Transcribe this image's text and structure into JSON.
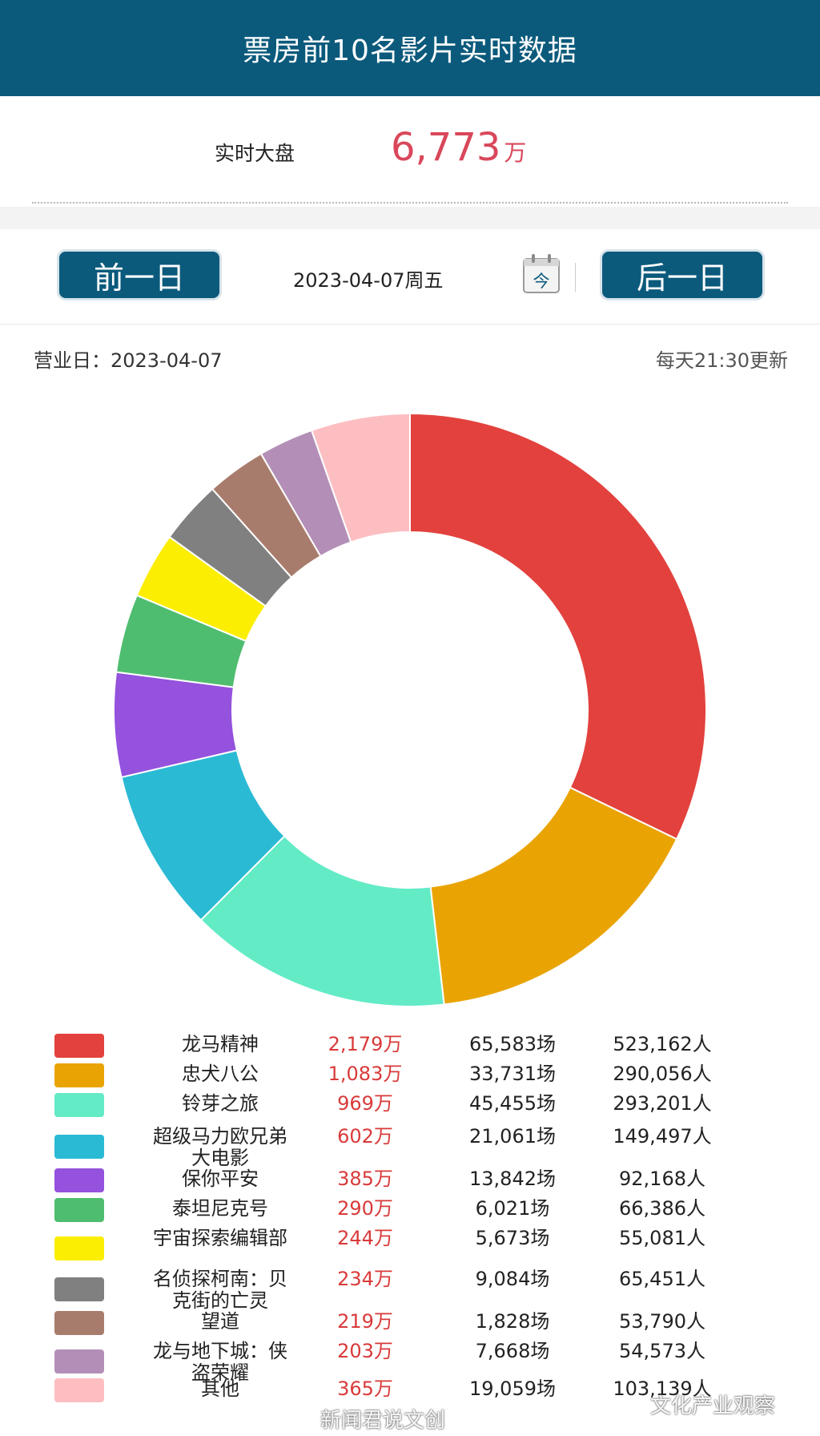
{
  "header": {
    "title": "票房前10名影片实时数据"
  },
  "total": {
    "label": "实时大盘",
    "value": "6,773",
    "unit": "万"
  },
  "nav": {
    "prev_label": "前一日",
    "date": "2023-04-07周五",
    "calendar_text": "今",
    "next_label": "后一日"
  },
  "info": {
    "business_day_label": "营业日：",
    "business_day": "2023-04-07",
    "update_note": "每天21:30更新"
  },
  "legend": [
    {
      "name": "龙马精神",
      "box_office": "2,179万",
      "shows": "65,583场",
      "people": "523,162人"
    },
    {
      "name": "忠犬八公",
      "box_office": "1,083万",
      "shows": "33,731场",
      "people": "290,056人"
    },
    {
      "name": "铃芽之旅",
      "box_office": "969万",
      "shows": "45,455场",
      "people": "293,201人"
    },
    {
      "name": "超级马力欧兄弟大电影",
      "box_office": "602万",
      "shows": "21,061场",
      "people": "149,497人"
    },
    {
      "name": "保你平安",
      "box_office": "385万",
      "shows": "13,842场",
      "people": "92,168人"
    },
    {
      "name": "泰坦尼克号",
      "box_office": "290万",
      "shows": "6,021场",
      "people": "66,386人"
    },
    {
      "name": "宇宙探索编辑部",
      "box_office": "244万",
      "shows": "5,673场",
      "people": "55,081人"
    },
    {
      "name": "名侦探柯南：贝克街的亡灵",
      "box_office": "234万",
      "shows": "9,084场",
      "people": "65,451人"
    },
    {
      "name": "望道",
      "box_office": "219万",
      "shows": "1,828场",
      "people": "53,790人"
    },
    {
      "name": "龙与地下城：侠盗荣耀",
      "box_office": "203万",
      "shows": "7,668场",
      "people": "54,573人"
    },
    {
      "name": "其他",
      "box_office": "365万",
      "shows": "19,059场",
      "people": "103,139人"
    }
  ],
  "watermark": {
    "left": "新闻君说文创",
    "right": "文化产业观察"
  },
  "chart_data": {
    "type": "pie",
    "style": "donut",
    "unit": "万",
    "categories": [
      "龙马精神",
      "忠犬八公",
      "铃芽之旅",
      "超级马力欧兄弟大电影",
      "保你平安",
      "泰坦尼克号",
      "宇宙探索编辑部",
      "名侦探柯南：贝克街的亡灵",
      "望道",
      "龙与地下城：侠盗荣耀",
      "其他"
    ],
    "values": [
      2179,
      1083,
      969,
      602,
      385,
      290,
      244,
      234,
      219,
      203,
      365
    ],
    "colors": [
      "#e2413d",
      "#e9a404",
      "#63ebc6",
      "#2bbad4",
      "#9452dd",
      "#4fbd6f",
      "#fbee02",
      "#808080",
      "#a87c6c",
      "#b38fb7",
      "#fdbec2"
    ],
    "legend_placement": "bottom"
  }
}
